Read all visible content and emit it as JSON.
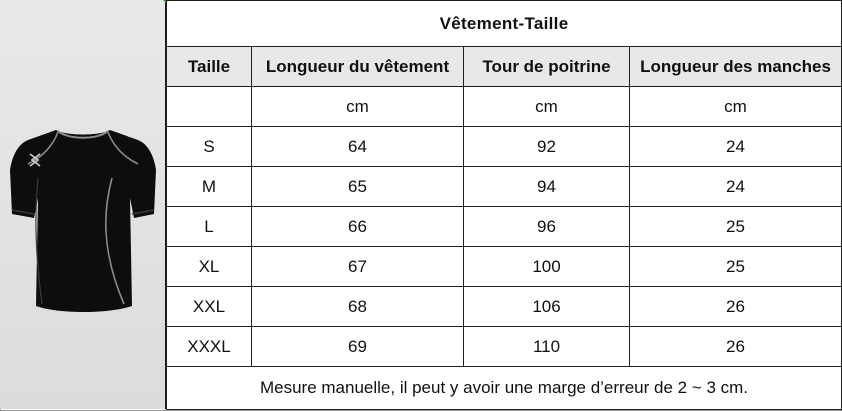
{
  "table": {
    "title": "Vêtement-Taille",
    "headers": [
      "Taille",
      "Longueur du vêtement",
      "Tour de poitrine",
      "Longueur des manches"
    ],
    "units": [
      "",
      "cm",
      "cm",
      "cm"
    ],
    "rows": [
      [
        "S",
        "64",
        "92",
        "24"
      ],
      [
        "M",
        "65",
        "94",
        "24"
      ],
      [
        "L",
        "66",
        "96",
        "25"
      ],
      [
        "XL",
        "67",
        "100",
        "25"
      ],
      [
        "XXL",
        "68",
        "106",
        "26"
      ],
      [
        "XXXL",
        "69",
        "110",
        "26"
      ]
    ],
    "note": "Mesure manuelle, il peut y avoir une marge d’erreur de 2 ~ 3 cm."
  },
  "product": {
    "image": "black-short-sleeve-compression-shirt",
    "logo_icon": "x-logo-icon",
    "colors": {
      "shirt": "#0d0d0d",
      "piping": "#9a9a9a",
      "panel": "#e2e2e2"
    }
  }
}
